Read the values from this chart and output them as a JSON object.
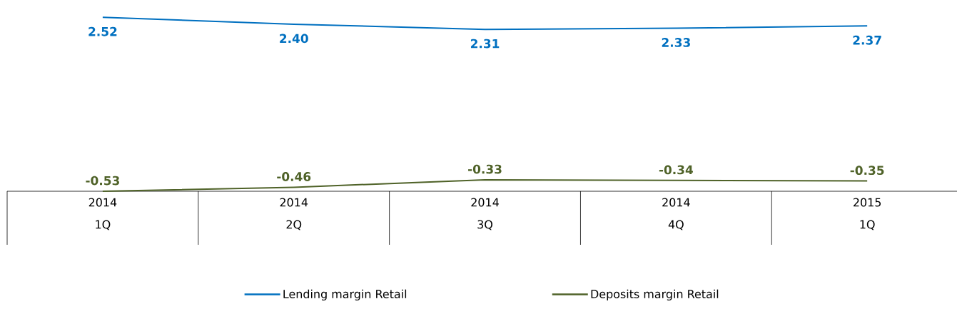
{
  "chart_data": {
    "type": "line",
    "categories": [
      "2014 1Q",
      "2014 2Q",
      "2014 3Q",
      "2014 4Q",
      "2015 1Q"
    ],
    "series": [
      {
        "name": "Lending margin Retail",
        "color": "#0070c0",
        "values": [
          2.52,
          2.4,
          2.31,
          2.33,
          2.37
        ],
        "value_labels": [
          "2.52",
          "2.40",
          "2.31",
          "2.33",
          "2.37"
        ]
      },
      {
        "name": "Deposits margin Retail",
        "color": "#4f6228",
        "values": [
          -0.53,
          -0.46,
          -0.33,
          -0.34,
          -0.35
        ],
        "value_labels": [
          "-0.53",
          "-0.46",
          "-0.33",
          "-0.34",
          "-0.35"
        ]
      }
    ],
    "legend": "bottom",
    "marker": "none",
    "line_style": "solid"
  }
}
